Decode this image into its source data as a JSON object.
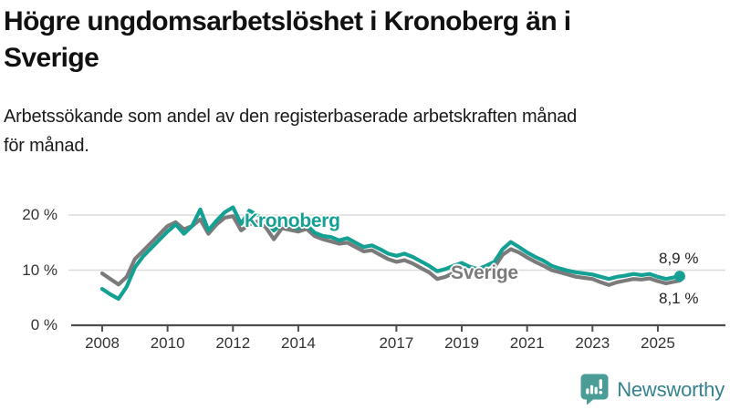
{
  "header": {
    "title_lines": [
      "Högre ungdomsarbetslöshet i Kronoberg än i",
      "Sverige"
    ],
    "subtitle_lines": [
      "Arbetssökande som andel av den registerbaserade arbetskraften månad",
      "för månad."
    ]
  },
  "chart_data": {
    "type": "line",
    "grid": "horizontal-only",
    "xlim": [
      2007.8,
      2026.1
    ],
    "ylim": [
      0,
      23
    ],
    "x_ticks": [
      2008,
      2010,
      2012,
      2014,
      2017,
      2019,
      2021,
      2023,
      2025
    ],
    "y_ticks": [
      {
        "value": 0,
        "label": "0 %"
      },
      {
        "value": 10,
        "label": "10 %"
      },
      {
        "value": 20,
        "label": "20 %"
      }
    ],
    "x": [
      2008.0,
      2008.25,
      2008.5,
      2008.75,
      2009.0,
      2009.25,
      2009.5,
      2009.75,
      2010.0,
      2010.25,
      2010.5,
      2010.75,
      2011.0,
      2011.25,
      2011.5,
      2011.75,
      2012.0,
      2012.25,
      2012.5,
      2012.75,
      2013.0,
      2013.25,
      2013.5,
      2013.75,
      2014.0,
      2014.25,
      2014.5,
      2014.75,
      2015.0,
      2015.25,
      2015.5,
      2015.75,
      2016.0,
      2016.25,
      2016.5,
      2016.75,
      2017.0,
      2017.25,
      2017.5,
      2017.75,
      2018.0,
      2018.25,
      2018.5,
      2018.75,
      2019.0,
      2019.25,
      2019.5,
      2019.75,
      2020.0,
      2020.25,
      2020.5,
      2020.75,
      2021.0,
      2021.25,
      2021.5,
      2021.75,
      2022.0,
      2022.25,
      2022.5,
      2022.75,
      2023.0,
      2023.25,
      2023.5,
      2023.75,
      2024.0,
      2024.25,
      2024.5,
      2024.75,
      2025.0,
      2025.25,
      2025.67
    ],
    "series": [
      {
        "name": "Kronoberg",
        "color": "#14a093",
        "end_label": "8,9 %",
        "end_dot": true,
        "values": [
          6.6,
          5.6,
          4.8,
          7.0,
          10.5,
          12.5,
          14.0,
          15.5,
          17.0,
          18.3,
          16.6,
          18.0,
          21.0,
          17.2,
          19.0,
          20.5,
          21.4,
          18.4,
          20.8,
          20.0,
          19.0,
          17.2,
          18.3,
          18.0,
          17.6,
          18.2,
          16.8,
          16.2,
          16.0,
          15.4,
          15.8,
          15.0,
          14.2,
          14.5,
          13.8,
          13.0,
          12.6,
          13.0,
          12.4,
          11.6,
          10.8,
          9.8,
          10.2,
          10.8,
          11.3,
          10.6,
          10.2,
          10.8,
          11.5,
          13.8,
          15.1,
          14.2,
          13.2,
          12.4,
          11.7,
          10.8,
          10.3,
          9.9,
          9.6,
          9.4,
          9.2,
          8.8,
          8.4,
          8.8,
          9.0,
          9.3,
          9.1,
          9.3,
          8.8,
          8.4,
          8.9
        ]
      },
      {
        "name": "Sverige",
        "color": "#7b7b7b",
        "end_label": "8,1 %",
        "end_dot": false,
        "values": [
          9.4,
          8.4,
          7.4,
          8.8,
          12.0,
          13.5,
          15.0,
          16.5,
          18.0,
          18.7,
          17.4,
          18.0,
          19.2,
          16.6,
          18.3,
          19.5,
          19.8,
          17.2,
          18.3,
          18.8,
          17.8,
          15.6,
          17.6,
          17.3,
          17.0,
          17.5,
          16.2,
          15.6,
          15.2,
          14.8,
          15.0,
          14.2,
          13.4,
          13.6,
          12.8,
          12.0,
          11.5,
          11.8,
          11.2,
          10.4,
          9.6,
          8.4,
          8.8,
          9.5,
          10.0,
          9.4,
          9.2,
          9.8,
          10.5,
          12.8,
          13.8,
          13.2,
          12.3,
          11.5,
          10.8,
          10.0,
          9.6,
          9.2,
          8.8,
          8.6,
          8.4,
          7.8,
          7.3,
          7.8,
          8.1,
          8.4,
          8.3,
          8.5,
          8.0,
          7.6,
          8.1
        ]
      }
    ]
  },
  "annotations": {
    "kronoberg_label": "Kronoberg",
    "sverige_label": "Sverige",
    "kronoberg_end_value": "8,9 %",
    "sverige_end_value": "8,1 %"
  },
  "footer": {
    "brand_name": "Newsworthy"
  },
  "colors": {
    "kronoberg_line": "#14a093",
    "sverige_line": "#7b7b7b",
    "grid_line": "#dcdcdc",
    "axis_line": "#4d4d4d",
    "logo_mark": "#4a9c96",
    "brand_text": "#35828d"
  }
}
